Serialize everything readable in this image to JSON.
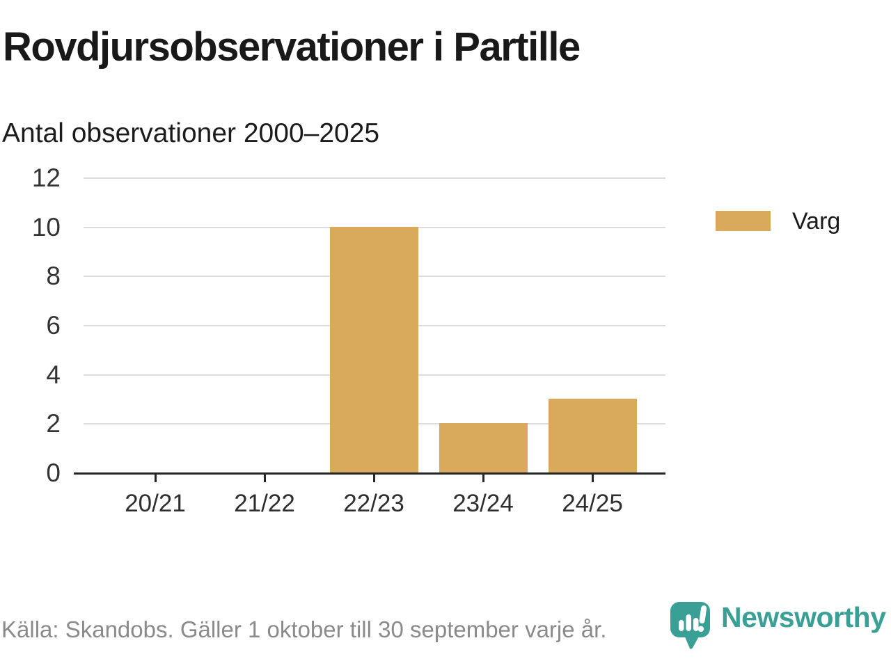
{
  "header": {
    "title": "Rovdjursobservationer i Partille"
  },
  "chart_data": {
    "type": "bar",
    "subtitle": "Antal observationer 2000–2025",
    "categories": [
      "20/21",
      "21/22",
      "22/23",
      "23/24",
      "24/25"
    ],
    "series": [
      {
        "name": "Varg",
        "color": "#D9A95C",
        "values": [
          0,
          0,
          10,
          2,
          3
        ]
      }
    ],
    "yticks": [
      0,
      2,
      4,
      6,
      8,
      10,
      12
    ],
    "ylim": [
      0,
      12
    ],
    "grid": true,
    "legend_position": "right"
  },
  "footer": {
    "source": "Källa: Skandobs. Gäller 1 oktober till 30 september varje år."
  },
  "brand": {
    "name": "Newsworthy"
  },
  "colors": {
    "bar": "#D9A95C",
    "grid": "#DCDCDC",
    "axis": "#262626",
    "text": "#1B1B1B",
    "muted": "#8A8A8A",
    "brand_teal": "#3AA096"
  }
}
